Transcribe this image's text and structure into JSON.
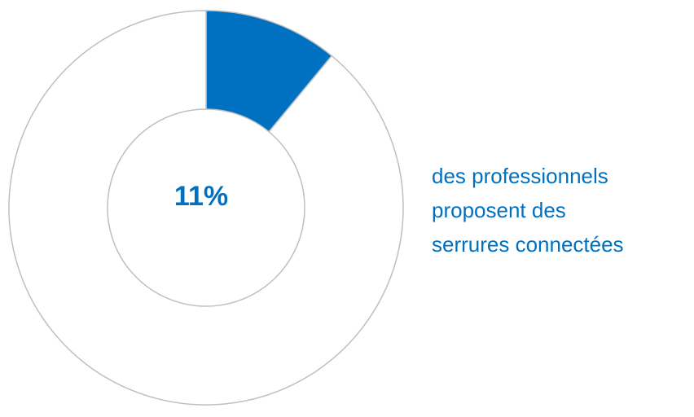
{
  "chart_data": {
    "type": "pie",
    "donut": true,
    "values": [
      11,
      89
    ],
    "value_labels": [
      "11%",
      null
    ],
    "colors": [
      "#0070c0",
      "#ffffff"
    ],
    "annotation": [
      "des professionnels",
      "proposent des",
      "serrures connectées"
    ]
  }
}
